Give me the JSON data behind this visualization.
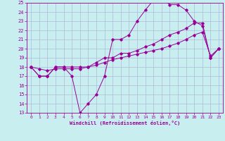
{
  "xlabel": "Windchill (Refroidissement éolien,°C)",
  "bg_color": "#c8eef0",
  "grid_color": "#b0b8d8",
  "line_color": "#990099",
  "xlim": [
    -0.5,
    23.5
  ],
  "ylim": [
    13,
    25
  ],
  "xticks": [
    0,
    1,
    2,
    3,
    4,
    5,
    6,
    7,
    8,
    9,
    10,
    11,
    12,
    13,
    14,
    15,
    16,
    17,
    18,
    19,
    20,
    21,
    22,
    23
  ],
  "yticks": [
    13,
    14,
    15,
    16,
    17,
    18,
    19,
    20,
    21,
    22,
    23,
    24,
    25
  ],
  "line1_x": [
    0,
    1,
    2,
    3,
    4,
    5,
    6,
    7,
    8,
    9,
    10,
    11,
    12,
    13,
    14,
    15,
    16,
    17,
    18,
    19,
    20,
    21,
    22,
    23
  ],
  "line1_y": [
    18,
    17,
    17,
    18,
    18,
    17,
    13,
    14,
    15,
    17,
    21,
    21,
    21.5,
    23,
    24.2,
    25.3,
    25.5,
    24.8,
    24.8,
    24.2,
    23,
    22.5,
    19,
    20
  ],
  "line2_x": [
    0,
    1,
    2,
    3,
    4,
    5,
    6,
    7,
    8,
    9,
    10,
    11,
    12,
    13,
    14,
    15,
    16,
    17,
    18,
    19,
    20,
    21,
    22,
    23
  ],
  "line2_y": [
    18,
    17,
    17,
    18,
    18,
    18,
    18,
    18,
    18.5,
    19,
    19,
    19.5,
    19.5,
    19.8,
    20.2,
    20.5,
    21,
    21.5,
    21.8,
    22.2,
    22.8,
    22.8,
    19,
    20
  ],
  "line3_x": [
    0,
    1,
    2,
    3,
    4,
    5,
    6,
    7,
    8,
    9,
    10,
    11,
    12,
    13,
    14,
    15,
    16,
    17,
    18,
    19,
    20,
    21,
    22,
    23
  ],
  "line3_y": [
    18,
    17.8,
    17.6,
    17.8,
    17.8,
    17.8,
    17.8,
    18,
    18.2,
    18.5,
    18.8,
    19,
    19.2,
    19.4,
    19.6,
    19.8,
    20.0,
    20.3,
    20.6,
    21.0,
    21.5,
    21.8,
    19.2,
    20.0
  ]
}
